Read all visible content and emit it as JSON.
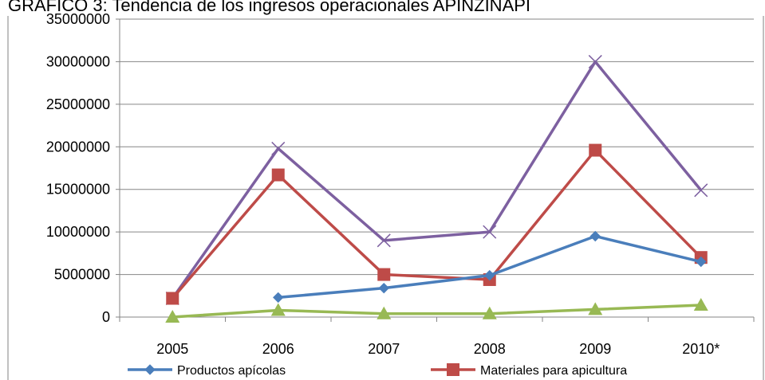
{
  "chart_data": {
    "type": "line",
    "title": "GRÁFICO 3: Tendencia de los ingresos operacionales APINZINAPI",
    "xlabel": "",
    "ylabel": "",
    "categories": [
      "2005",
      "2006",
      "2007",
      "2008",
      "2009",
      "2010*"
    ],
    "ylim": [
      0,
      35000000
    ],
    "yticks": [
      0,
      5000000,
      10000000,
      15000000,
      20000000,
      25000000,
      30000000,
      35000000
    ],
    "grid": "horizontal",
    "legend_position": "bottom",
    "series": [
      {
        "name": "Productos apícolas",
        "color": "#4a7ebb",
        "marker": "diamond",
        "values": [
          null,
          2300000,
          3400000,
          4900000,
          9500000,
          6500000
        ]
      },
      {
        "name": "Materiales para apicultura",
        "color": "#be4b48",
        "marker": "square",
        "values": [
          2200000,
          16700000,
          5000000,
          4400000,
          19600000,
          7000000
        ]
      },
      {
        "name": "",
        "color": "#98b954",
        "marker": "triangle",
        "values": [
          0,
          800000,
          400000,
          400000,
          900000,
          1400000
        ]
      },
      {
        "name": "",
        "color": "#7d60a0",
        "marker": "x",
        "values": [
          2200000,
          19800000,
          9000000,
          10000000,
          30000000,
          14900000
        ]
      }
    ]
  }
}
